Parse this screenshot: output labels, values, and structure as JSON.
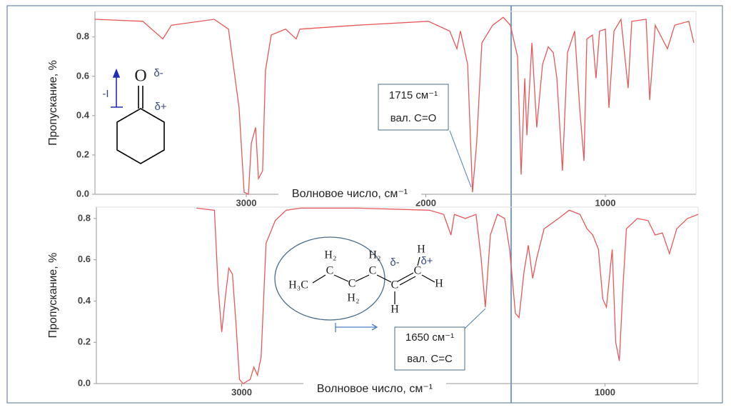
{
  "chart_data": [
    {
      "type": "line",
      "xlabel": "Волновое число, см⁻¹",
      "ylabel": "Пропускание, %",
      "color": "#e8585a",
      "xlim": [
        3843,
        495
      ],
      "ylim": [
        0,
        0.93
      ],
      "xticks": [
        3000,
        2000,
        1000
      ],
      "yticks": [
        {
          "value": 0,
          "label": "0.0"
        },
        0.2,
        0.4,
        0.6,
        0.8
      ],
      "x": [
        3843,
        3577,
        3465,
        3417,
        3179,
        3099,
        3040,
        3012,
        2988,
        2972,
        2948,
        2932,
        2909,
        2893,
        2861,
        2781,
        2722,
        2702,
        2384,
        1986,
        1867,
        1827,
        1807,
        1767,
        1740,
        1717,
        1688,
        1628,
        1569,
        1529,
        1489,
        1469,
        1449,
        1437,
        1409,
        1382,
        1350,
        1318,
        1290,
        1270,
        1239,
        1211,
        1171,
        1143,
        1119,
        1103,
        1072,
        1052,
        1032,
        1000,
        980,
        952,
        913,
        873,
        853,
        773,
        753,
        722,
        654,
        614,
        535,
        507
      ],
      "values": [
        0.89,
        0.88,
        0.79,
        0.86,
        0.89,
        0.84,
        0.44,
        0.01,
        0,
        0.26,
        0.34,
        0.08,
        0.12,
        0.63,
        0.81,
        0.84,
        0.79,
        0.84,
        0.86,
        0.88,
        0.83,
        0.74,
        0.83,
        0.66,
        0.01,
        0.26,
        0.77,
        0.86,
        0.9,
        0.86,
        0.7,
        0.1,
        0.59,
        0.3,
        0.77,
        0.34,
        0.66,
        0.75,
        0.72,
        0.59,
        0.12,
        0.72,
        0.83,
        0.44,
        0.17,
        0.79,
        0.81,
        0.59,
        0.83,
        0.84,
        0.44,
        0.83,
        0.89,
        0.54,
        0.88,
        0.89,
        0.48,
        0.86,
        0.74,
        0.86,
        0.88,
        0.77
      ],
      "annotations": [
        "1715 см⁻¹",
        "вал. C=O"
      ],
      "structure_labels": [
        "O",
        "δ-",
        "δ+",
        "-I"
      ]
    },
    {
      "type": "line",
      "xlabel": "Волновое число, см⁻¹",
      "ylabel": "Пропускание, %",
      "color": "#e8585a",
      "xlim": [
        3800,
        487
      ],
      "ylim": [
        0,
        0.855
      ],
      "xticks": [
        3000,
        1000
      ],
      "yticks": [
        {
          "value": 0,
          "label": "0.0"
        },
        0.2,
        0.4,
        0.6,
        0.8
      ],
      "x": [
        3249,
        3150,
        3130,
        3110,
        3091,
        3071,
        3051,
        3032,
        3012,
        2992,
        2953,
        2933,
        2913,
        2893,
        2866,
        2815,
        2755,
        2676,
        2361,
        1966,
        1888,
        1848,
        1829,
        1769,
        1710,
        1682,
        1659,
        1631,
        1592,
        1552,
        1525,
        1493,
        1473,
        1446,
        1422,
        1398,
        1375,
        1335,
        1256,
        1197,
        1138,
        1099,
        1067,
        1036,
        1012,
        992,
        960,
        941,
        921,
        901,
        882,
        822,
        763,
        724,
        684,
        645,
        605,
        546,
        487
      ],
      "values": [
        0.85,
        0.84,
        0.47,
        0.25,
        0.41,
        0.56,
        0.53,
        0.3,
        0.02,
        0,
        0.02,
        0.08,
        0.04,
        0.13,
        0.68,
        0.79,
        0.84,
        0.85,
        0.85,
        0.84,
        0.82,
        0.72,
        0.82,
        0.8,
        0.82,
        0.61,
        0.37,
        0.72,
        0.82,
        0.8,
        0.65,
        0.34,
        0.32,
        0.54,
        0.67,
        0.51,
        0.61,
        0.75,
        0.8,
        0.84,
        0.82,
        0.75,
        0.72,
        0.65,
        0.41,
        0.37,
        0.65,
        0.2,
        0.11,
        0.47,
        0.75,
        0.8,
        0.79,
        0.72,
        0.73,
        0.63,
        0.75,
        0.8,
        0.82
      ],
      "annotations": [
        "1650 см⁻¹",
        "вал. C=C"
      ],
      "structure_labels": [
        "H₂",
        "H₂",
        "δ-",
        "H",
        "δ+",
        "H₃C",
        "C",
        "C",
        "C",
        "C",
        "C",
        "H",
        "H₂",
        "H"
      ]
    }
  ]
}
